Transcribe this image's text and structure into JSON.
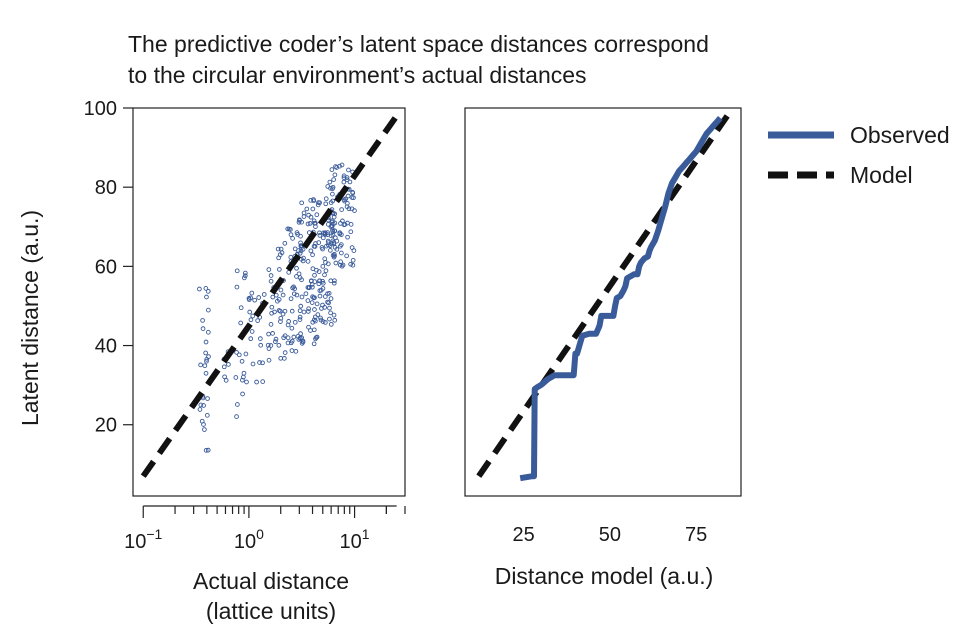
{
  "title_line1": "The predictive coder’s latent space distances correspond",
  "title_line2": "to the circular environment’s actual distances",
  "colors": {
    "observed": "#3a5b9a",
    "model": "#111111",
    "axis": "#222222"
  },
  "legend": {
    "observed": "Observed",
    "model": "Model"
  },
  "chart_data": [
    {
      "type": "scatter",
      "xscale": "log",
      "xlabel_line1": "Actual distance",
      "xlabel_line2": "(lattice units)",
      "ylabel": "Latent distance (a.u.)",
      "xlim": [
        0.08,
        30
      ],
      "ylim": [
        2,
        100
      ],
      "yticks": [
        20,
        40,
        60,
        80,
        100
      ],
      "xticks": [
        {
          "value": 0.1,
          "base": "10",
          "exp": "−1"
        },
        {
          "value": 1,
          "base": "10",
          "exp": "0"
        },
        {
          "value": 10,
          "base": "10",
          "exp": "1"
        }
      ],
      "model_line": {
        "x": [
          0.1,
          25
        ],
        "y": [
          7,
          98
        ]
      },
      "clusters": [
        {
          "x": [
            0.34,
            0.42
          ],
          "y": [
            11,
            58
          ],
          "n": 28
        },
        {
          "x": [
            0.55,
            0.65
          ],
          "y": [
            27,
            45
          ],
          "n": 6
        },
        {
          "x": [
            0.75,
            0.95
          ],
          "y": [
            22,
            62
          ],
          "n": 20
        },
        {
          "x": [
            1.0,
            1.4
          ],
          "y": [
            30,
            54
          ],
          "n": 22
        },
        {
          "x": [
            1.5,
            2.2
          ],
          "y": [
            36,
            66
          ],
          "n": 40
        },
        {
          "x": [
            2.2,
            3.2
          ],
          "y": [
            38,
            72
          ],
          "n": 55
        },
        {
          "x": [
            3.0,
            4.5
          ],
          "y": [
            40,
            78
          ],
          "n": 75
        },
        {
          "x": [
            4.5,
            6.5
          ],
          "y": [
            45,
            82
          ],
          "n": 85
        },
        {
          "x": [
            6.0,
            10.0
          ],
          "y": [
            60,
            86
          ],
          "n": 80
        }
      ]
    },
    {
      "type": "line",
      "xlabel": "Distance model (a.u.)",
      "xlim": [
        8,
        88
      ],
      "ylim": [
        2,
        100
      ],
      "xticks": [
        25,
        50,
        75
      ],
      "series": [
        {
          "name": "Observed",
          "x": [
            24,
            27.5,
            28,
            28.2,
            29,
            30,
            32,
            34,
            36,
            38,
            39.5,
            40,
            40.5,
            42,
            44,
            46,
            47,
            47.5,
            48,
            50,
            51,
            51.5,
            52,
            53,
            54,
            54.5,
            55,
            56,
            57,
            58,
            58.5,
            59,
            60,
            61,
            61.5,
            62,
            63,
            64,
            65,
            66,
            67,
            68,
            69,
            70,
            71,
            72,
            73,
            74,
            75,
            76,
            77,
            78,
            79,
            80,
            81,
            82
          ],
          "y": [
            6.5,
            7,
            7,
            29,
            29.5,
            30,
            31.5,
            32.5,
            32.5,
            32.5,
            32.5,
            38,
            38,
            42.5,
            43,
            43,
            45,
            47.5,
            47.5,
            47.5,
            47.5,
            50,
            52,
            52.5,
            54,
            55,
            57,
            57.5,
            58,
            58,
            60,
            61,
            62,
            62.5,
            64,
            65,
            66.5,
            69,
            72,
            75,
            78.5,
            81,
            82.5,
            84,
            85,
            86,
            87,
            88,
            89,
            90.5,
            92,
            93.5,
            94.5,
            95.5,
            96.5,
            97.5
          ]
        },
        {
          "name": "Model",
          "x": [
            12,
            84
          ],
          "y": [
            7,
            98
          ]
        }
      ]
    }
  ]
}
